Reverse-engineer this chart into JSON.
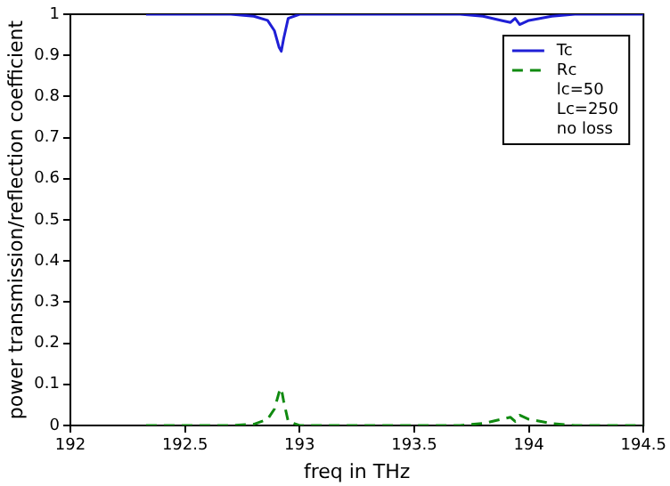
{
  "chart_data": {
    "type": "line",
    "xlabel": "freq in THz",
    "ylabel": "power transmission/reflection coefficient",
    "xlim": [
      192,
      194.5
    ],
    "xticks": [
      192,
      192.5,
      193,
      193.5,
      194,
      194.5
    ],
    "ylim": [
      0,
      1
    ],
    "yticks": [
      0,
      0.1,
      0.2,
      0.3,
      0.4,
      0.5,
      0.6,
      0.7,
      0.8,
      0.9,
      1
    ],
    "grid": false,
    "legend": "top right",
    "marker": "none",
    "annotations": [
      "lc=50",
      "Lc=250",
      "no loss"
    ],
    "series": [
      {
        "name": "Tc",
        "color": "#1f1fd6",
        "line_style": "solid",
        "x": [
          192.33,
          192.7,
          192.8,
          192.86,
          192.89,
          192.91,
          192.92,
          192.93,
          192.95,
          193.0,
          193.7,
          193.8,
          193.88,
          193.92,
          193.94,
          193.96,
          194.0,
          194.1,
          194.2,
          194.5
        ],
        "values": [
          1,
          1,
          0.995,
          0.985,
          0.96,
          0.92,
          0.91,
          0.94,
          0.99,
          1,
          1,
          0.995,
          0.985,
          0.98,
          0.99,
          0.975,
          0.985,
          0.995,
          1,
          1
        ]
      },
      {
        "name": "Rc",
        "color": "#108a10",
        "line_style": "dashed",
        "x": [
          192.33,
          192.7,
          192.8,
          192.86,
          192.89,
          192.91,
          192.92,
          192.93,
          192.95,
          193.0,
          193.7,
          193.8,
          193.88,
          193.92,
          193.94,
          193.96,
          194.0,
          194.1,
          194.2,
          194.5
        ],
        "values": [
          0,
          0,
          0.003,
          0.015,
          0.04,
          0.08,
          0.09,
          0.06,
          0.01,
          0,
          0,
          0.005,
          0.015,
          0.02,
          0.01,
          0.025,
          0.015,
          0.005,
          0,
          0
        ]
      }
    ]
  }
}
